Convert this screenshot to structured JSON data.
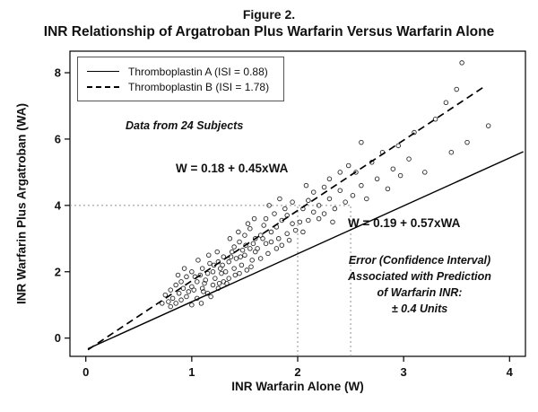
{
  "header": {
    "figure_label": "Figure 2.",
    "title": "INR Relationship of Argatroban Plus Warfarin Versus Warfarin Alone"
  },
  "chart_data": {
    "type": "scatter",
    "title": "Figure 2.",
    "subtitle": "INR Relationship of Argatroban Plus Warfarin Versus Warfarin Alone",
    "xlabel": "INR Warfarin Alone (W)",
    "ylabel": "INR Warfarin Plus Argatroban (WA)",
    "xlim": [
      -0.15,
      4.15
    ],
    "ylim": [
      -0.55,
      8.65
    ],
    "xticks": [
      0,
      1,
      2,
      3,
      4
    ],
    "yticks": [
      0,
      2,
      4,
      6,
      8
    ],
    "grid": false,
    "legend_position": "top-left",
    "legend": [
      {
        "label": "Thromboplastin A (ISI = 0.88)",
        "style": "solid"
      },
      {
        "label": "Thromboplastin B (ISI = 1.78)",
        "style": "dashed"
      }
    ],
    "annotations": {
      "subjects": "Data from 24 Subjects",
      "equation_b": "W = 0.18 + 0.45xWA",
      "equation_a": "W = 0.19 + 0.57xWA",
      "error_lines": [
        "Error (Confidence Interval)",
        "Associated with Prediction",
        "of Warfarin INR:",
        "± 0.4 Units"
      ]
    },
    "lines": [
      {
        "name": "Thromboplastin A regression",
        "style": "solid",
        "x1": 0.02,
        "y1": -0.32,
        "x2": 4.13,
        "y2": 5.62
      },
      {
        "name": "Thromboplastin B regression",
        "style": "dashed",
        "x1": 0.02,
        "y1": -0.35,
        "x2": 3.78,
        "y2": 7.62
      }
    ],
    "reference_lines": {
      "horizontal": {
        "y": 4,
        "x_start": -0.15,
        "x_end": 2.5
      },
      "verticals": [
        {
          "x": 2.0,
          "y_bottom": -0.55,
          "y_top": 4
        },
        {
          "x": 2.5,
          "y_bottom": -0.55,
          "y_top": 4
        }
      ]
    },
    "colors": {
      "ink": "#111111",
      "line": "#000000",
      "reference": "#909090"
    },
    "points": [
      [
        0.72,
        1.05
      ],
      [
        0.75,
        1.3
      ],
      [
        0.78,
        1.1
      ],
      [
        0.8,
        1.45
      ],
      [
        0.82,
        1.2
      ],
      [
        0.85,
        1.6
      ],
      [
        0.85,
        1.05
      ],
      [
        0.88,
        1.35
      ],
      [
        0.9,
        1.7
      ],
      [
        0.9,
        1.15
      ],
      [
        0.92,
        1.5
      ],
      [
        0.95,
        1.25
      ],
      [
        0.95,
        1.85
      ],
      [
        0.97,
        1.4
      ],
      [
        1.0,
        1.0
      ],
      [
        1.0,
        1.55
      ],
      [
        1.0,
        2.0
      ],
      [
        0.87,
        1.9
      ],
      [
        0.93,
        2.1
      ],
      [
        0.8,
        0.95
      ],
      [
        1.02,
        1.45
      ],
      [
        1.05,
        1.7
      ],
      [
        1.05,
        1.2
      ],
      [
        1.08,
        1.9
      ],
      [
        1.1,
        1.5
      ],
      [
        1.1,
        2.1
      ],
      [
        1.12,
        1.65
      ],
      [
        1.15,
        1.35
      ],
      [
        1.15,
        1.95
      ],
      [
        1.17,
        2.25
      ],
      [
        1.2,
        1.6
      ],
      [
        1.2,
        2.0
      ],
      [
        1.22,
        1.8
      ],
      [
        1.25,
        1.5
      ],
      [
        1.25,
        2.3
      ],
      [
        1.27,
        2.1
      ],
      [
        1.3,
        1.7
      ],
      [
        1.3,
        2.45
      ],
      [
        1.28,
        1.95
      ],
      [
        1.24,
        2.6
      ],
      [
        1.06,
        2.35
      ],
      [
        1.18,
        1.25
      ],
      [
        1.09,
        1.05
      ],
      [
        1.21,
        2.2
      ],
      [
        1.13,
        1.75
      ],
      [
        1.29,
        2.2
      ],
      [
        1.03,
        1.85
      ],
      [
        1.26,
        1.65
      ],
      [
        1.16,
        2.5
      ],
      [
        1.11,
        1.4
      ],
      [
        1.32,
        2.0
      ],
      [
        1.35,
        2.3
      ],
      [
        1.35,
        1.8
      ],
      [
        1.38,
        2.6
      ],
      [
        1.4,
        2.1
      ],
      [
        1.4,
        2.75
      ],
      [
        1.42,
        2.4
      ],
      [
        1.45,
        1.95
      ],
      [
        1.45,
        2.9
      ],
      [
        1.47,
        2.2
      ],
      [
        1.5,
        2.5
      ],
      [
        1.5,
        3.1
      ],
      [
        1.52,
        2.05
      ],
      [
        1.55,
        2.7
      ],
      [
        1.55,
        3.3
      ],
      [
        1.57,
        2.35
      ],
      [
        1.6,
        2.6
      ],
      [
        1.6,
        3.0
      ],
      [
        1.58,
        2.85
      ],
      [
        1.53,
        3.45
      ],
      [
        1.37,
        2.45
      ],
      [
        1.33,
        1.65
      ],
      [
        1.48,
        2.65
      ],
      [
        1.44,
        3.2
      ],
      [
        1.56,
        2.15
      ],
      [
        1.59,
        3.6
      ],
      [
        1.41,
        1.9
      ],
      [
        1.36,
        3.0
      ],
      [
        1.51,
        2.8
      ],
      [
        1.46,
        2.45
      ],
      [
        1.62,
        2.7
      ],
      [
        1.65,
        3.1
      ],
      [
        1.65,
        2.4
      ],
      [
        1.68,
        3.4
      ],
      [
        1.7,
        2.85
      ],
      [
        1.7,
        3.6
      ],
      [
        1.72,
        2.55
      ],
      [
        1.75,
        3.2
      ],
      [
        1.75,
        2.9
      ],
      [
        1.78,
        3.75
      ],
      [
        1.8,
        2.7
      ],
      [
        1.8,
        3.35
      ],
      [
        1.82,
        3.0
      ],
      [
        1.85,
        3.55
      ],
      [
        1.85,
        2.8
      ],
      [
        1.88,
        3.9
      ],
      [
        1.9,
        3.15
      ],
      [
        1.9,
        3.7
      ],
      [
        1.92,
        2.95
      ],
      [
        1.95,
        3.45
      ],
      [
        1.95,
        4.1
      ],
      [
        1.98,
        3.25
      ],
      [
        1.73,
        4.0
      ],
      [
        1.83,
        4.2
      ],
      [
        1.67,
        3.0
      ],
      [
        2.02,
        3.5
      ],
      [
        2.05,
        3.9
      ],
      [
        2.05,
        3.2
      ],
      [
        2.1,
        4.15
      ],
      [
        2.1,
        3.55
      ],
      [
        2.15,
        3.8
      ],
      [
        2.15,
        4.4
      ],
      [
        2.2,
        3.6
      ],
      [
        2.2,
        4.0
      ],
      [
        2.25,
        4.55
      ],
      [
        2.25,
        3.75
      ],
      [
        2.3,
        4.2
      ],
      [
        2.3,
        4.8
      ],
      [
        2.35,
        3.9
      ],
      [
        2.4,
        4.45
      ],
      [
        2.4,
        5.0
      ],
      [
        2.45,
        4.1
      ],
      [
        2.48,
        5.2
      ],
      [
        2.33,
        3.5
      ],
      [
        2.08,
        4.6
      ],
      [
        2.52,
        4.3
      ],
      [
        2.55,
        5.0
      ],
      [
        2.6,
        4.6
      ],
      [
        2.6,
        5.9
      ],
      [
        2.65,
        4.2
      ],
      [
        2.7,
        5.3
      ],
      [
        2.75,
        4.8
      ],
      [
        2.8,
        5.6
      ],
      [
        2.85,
        4.5
      ],
      [
        2.9,
        5.1
      ],
      [
        2.95,
        5.8
      ],
      [
        2.97,
        4.9
      ],
      [
        3.05,
        5.4
      ],
      [
        3.1,
        6.2
      ],
      [
        3.2,
        5.0
      ],
      [
        3.3,
        6.6
      ],
      [
        3.4,
        7.1
      ],
      [
        3.5,
        7.5
      ],
      [
        3.55,
        8.3
      ],
      [
        3.8,
        6.4
      ],
      [
        3.45,
        5.6
      ],
      [
        3.6,
        5.9
      ]
    ]
  }
}
